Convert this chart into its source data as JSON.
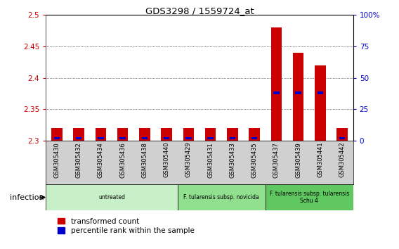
{
  "title": "GDS3298 / 1559724_at",
  "samples": [
    "GSM305430",
    "GSM305432",
    "GSM305434",
    "GSM305436",
    "GSM305438",
    "GSM305440",
    "GSM305429",
    "GSM305431",
    "GSM305433",
    "GSM305435",
    "GSM305437",
    "GSM305439",
    "GSM305441",
    "GSM305442"
  ],
  "transformed_count": [
    2.32,
    2.32,
    2.32,
    2.32,
    2.32,
    2.32,
    2.32,
    2.32,
    2.32,
    2.32,
    2.48,
    2.44,
    2.42,
    2.32
  ],
  "percentile_rank": [
    2,
    2,
    2,
    2,
    2,
    2,
    2,
    2,
    2,
    2,
    38,
    38,
    38,
    2
  ],
  "ylim_left": [
    2.3,
    2.5
  ],
  "ylim_right": [
    0,
    100
  ],
  "yticks_left": [
    2.3,
    2.35,
    2.4,
    2.45,
    2.5
  ],
  "yticks_right": [
    0,
    25,
    50,
    75,
    100
  ],
  "ytick_labels_right": [
    "0",
    "25",
    "50",
    "75",
    "100%"
  ],
  "groups": [
    {
      "label": "untreated",
      "start": 0,
      "end": 5,
      "color": "#c8f0c8"
    },
    {
      "label": "F. tularensis subsp. novicida",
      "start": 6,
      "end": 9,
      "color": "#90e090"
    },
    {
      "label": "F. tularensis subsp. tularensis\nSchu 4",
      "start": 10,
      "end": 13,
      "color": "#60c860"
    }
  ],
  "bar_color_red": "#cc0000",
  "bar_color_blue": "#0000cc",
  "bar_width": 0.5,
  "xlabel_infection": "infection",
  "legend_red": "transformed count",
  "legend_blue": "percentile rank within the sample",
  "tick_label_color_left": "#cc0000",
  "tick_label_color_right": "#0000cc"
}
